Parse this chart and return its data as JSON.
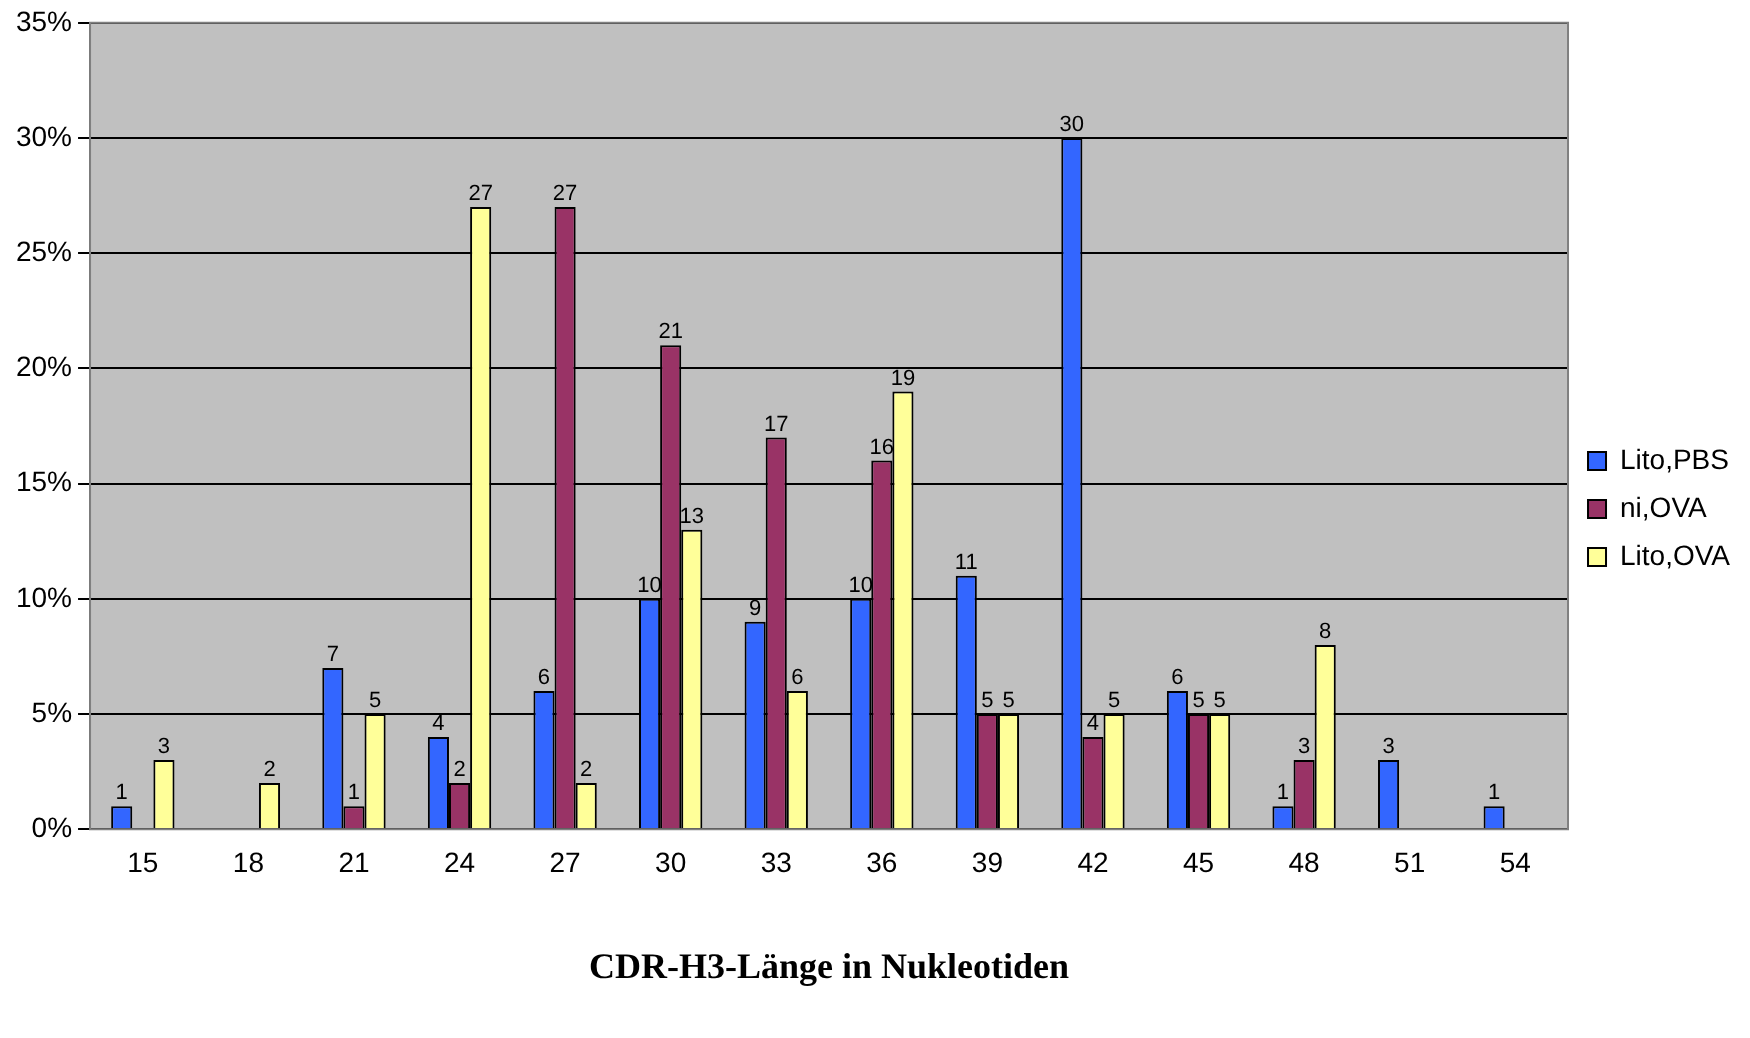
{
  "chart_data": {
    "type": "bar",
    "xlabel": "CDR-H3-Länge in Nukleotiden",
    "categories": [
      "15",
      "18",
      "21",
      "24",
      "27",
      "30",
      "33",
      "36",
      "39",
      "42",
      "45",
      "48",
      "51",
      "54"
    ],
    "series": [
      {
        "name": "Lito,PBS",
        "color": "#3366ff",
        "values": [
          1,
          null,
          7,
          4,
          6,
          10,
          9,
          10,
          11,
          30,
          6,
          1,
          3,
          1
        ]
      },
      {
        "name": "ni,OVA",
        "color": "#993366",
        "values": [
          null,
          null,
          1,
          2,
          27,
          21,
          17,
          16,
          5,
          4,
          5,
          3,
          null,
          null
        ]
      },
      {
        "name": "Lito,OVA",
        "color": "#ffff99",
        "values": [
          3,
          2,
          5,
          27,
          2,
          13,
          6,
          19,
          5,
          5,
          5,
          8,
          null,
          null
        ]
      }
    ],
    "ylim": [
      0,
      35
    ],
    "yticks": [
      {
        "value": 0,
        "label": "0%"
      },
      {
        "value": 5,
        "label": "5%"
      },
      {
        "value": 10,
        "label": "10%"
      },
      {
        "value": 15,
        "label": "15%"
      },
      {
        "value": 20,
        "label": "20%"
      },
      {
        "value": 25,
        "label": "25%"
      },
      {
        "value": 30,
        "label": "30%"
      },
      {
        "value": 35,
        "label": "35%"
      }
    ],
    "grid": "y",
    "legend": "right",
    "data_labels": true
  }
}
